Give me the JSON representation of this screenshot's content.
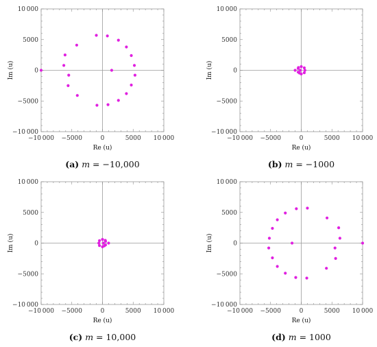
{
  "chart_data": [
    {
      "type": "scatter",
      "caption": {
        "label": "(a)",
        "variable": "m",
        "relation": "=",
        "value": "−10,000"
      },
      "xlabel": "Re (u)",
      "ylabel": "Im (u)",
      "xlim": [
        -10000,
        10000
      ],
      "ylim": [
        -10000,
        10000
      ],
      "xticks": [
        "−10 000",
        "−5000",
        "0",
        "5000",
        "10 000"
      ],
      "yticks": [
        "10 000",
        "5000",
        "0",
        "−5000",
        "−10 000"
      ],
      "grid": false,
      "point_color": "#e020e0",
      "x": [
        -10000,
        -6100,
        -6300,
        -5500,
        -5600,
        -4200,
        -4100,
        -1000,
        -900,
        800,
        900,
        1500,
        2600,
        2600,
        3900,
        3900,
        4700,
        4700,
        5200,
        5300
      ],
      "y": [
        0,
        2500,
        800,
        -800,
        -2500,
        4100,
        -4100,
        5700,
        -5700,
        5600,
        -5600,
        0,
        4900,
        -4900,
        3800,
        -3800,
        2400,
        -2400,
        800,
        -800
      ]
    },
    {
      "type": "scatter",
      "caption": {
        "label": "(b)",
        "variable": "m",
        "relation": "=",
        "value": "−1000"
      },
      "xlabel": "Re (u)",
      "ylabel": "Im (u)",
      "xlim": [
        -10000,
        10000
      ],
      "ylim": [
        -10000,
        10000
      ],
      "xticks": [
        "−10 000",
        "−5000",
        "0",
        "5000",
        "10 000"
      ],
      "yticks": [
        "10 000",
        "5000",
        "0",
        "−5000",
        "−10 000"
      ],
      "grid": false,
      "point_color": "#e020e0",
      "x": [
        -1000,
        -150,
        0,
        490,
        600,
        490,
        0,
        -500,
        -500,
        -460,
        -300
      ],
      "y": [
        0,
        0,
        600,
        400,
        0,
        -400,
        -600,
        300,
        -300,
        450,
        -450
      ]
    },
    {
      "type": "scatter",
      "caption": {
        "label": "(c)",
        "variable": "m",
        "relation": "=",
        "value": "10,000"
      },
      "xlabel": "Re (u)",
      "ylabel": "Im (u)",
      "xlim": [
        -10000,
        10000
      ],
      "ylim": [
        -10000,
        10000
      ],
      "xticks": [
        "−10 000",
        "−5000",
        "0",
        "5000",
        "10 000"
      ],
      "yticks": [
        "10 000",
        "5000",
        "0",
        "−5000",
        "−10 000"
      ],
      "grid": false,
      "point_color": "#e020e0",
      "x": [
        1000,
        150,
        0,
        -490,
        -600,
        -490,
        0,
        500,
        500,
        460,
        300
      ],
      "y": [
        0,
        0,
        600,
        400,
        0,
        -400,
        -600,
        300,
        -300,
        450,
        -450
      ]
    },
    {
      "type": "scatter",
      "caption": {
        "label": "(d)",
        "variable": "m",
        "relation": "=",
        "value": "1000"
      },
      "xlabel": "Re (u)",
      "ylabel": "Im (u)",
      "xlim": [
        -10000,
        10000
      ],
      "ylim": [
        -10000,
        10000
      ],
      "xticks": [
        "−10 000",
        "−5000",
        "0",
        "5000",
        "10 000"
      ],
      "yticks": [
        "10 000",
        "5000",
        "0",
        "−5000",
        "−10 000"
      ],
      "grid": false,
      "point_color": "#e020e0",
      "x": [
        10000,
        6100,
        6300,
        5500,
        5600,
        4200,
        4100,
        1000,
        900,
        -800,
        -900,
        -1500,
        -2600,
        -2600,
        -3900,
        -3900,
        -4700,
        -4700,
        -5200,
        -5300
      ],
      "y": [
        0,
        2500,
        800,
        -800,
        -2500,
        4100,
        -4100,
        5700,
        -5700,
        5600,
        -5600,
        0,
        4900,
        -4900,
        3800,
        -3800,
        2400,
        -2400,
        800,
        -800
      ]
    }
  ]
}
